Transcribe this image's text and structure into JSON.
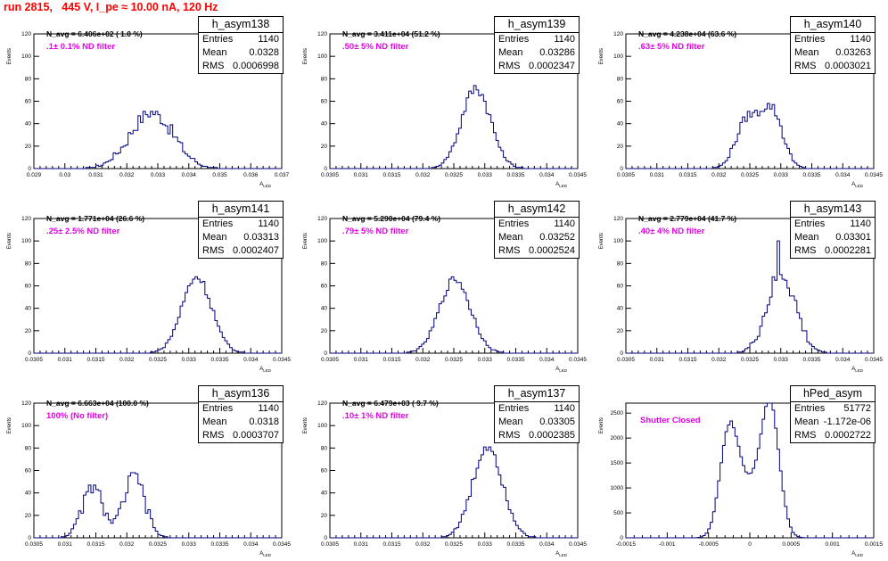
{
  "header": {
    "title": "run 2815,   445 V, I_pe ≈ 10.00 nA, 120 Hz"
  },
  "colors": {
    "title": "#ff0000",
    "filter_text": "#e600e6",
    "histogram": "#000080"
  },
  "common": {
    "ylabel": "Events",
    "xlabel": "A",
    "xlabel_sub": "LED"
  },
  "chart_data": [
    {
      "type": "bar",
      "title": "h_asym138",
      "navg": "N_avg = 6.406e+02 ( 1.0 %)",
      "filter": ".1± 0.1% ND filter",
      "stats": {
        "entries": "1140",
        "mean": "0.0328",
        "rms": "0.0006998"
      },
      "xlim": [
        0.029,
        0.037
      ],
      "ylim": [
        0,
        120
      ],
      "xticks": [
        "0.029",
        "0.03",
        "0.031",
        "0.032",
        "0.033",
        "0.034",
        "0.035",
        "0.036",
        "0.037"
      ],
      "yticks": [
        "0",
        "20",
        "40",
        "60",
        "80",
        "100",
        "120"
      ],
      "profile": {
        "type": "gauss",
        "mean": 0.0328,
        "sigma": 0.0007,
        "peak": 50,
        "noise": 12
      }
    },
    {
      "type": "bar",
      "title": "h_asym139",
      "navg": "N_avg = 3.411e+04 (51.2 %)",
      "filter": ".50± 5% ND filter",
      "stats": {
        "entries": "1140",
        "mean": "0.03286",
        "rms": "0.0002347"
      },
      "xlim": [
        0.0305,
        0.0345
      ],
      "ylim": [
        0,
        120
      ],
      "xticks": [
        "0.0305",
        "0.031",
        "0.0315",
        "0.032",
        "0.0325",
        "0.033",
        "0.0335",
        "0.034",
        "0.0345"
      ],
      "yticks": [
        "0",
        "20",
        "40",
        "60",
        "80",
        "100",
        "120"
      ],
      "profile": {
        "type": "gauss",
        "mean": 0.03286,
        "sigma": 0.000235,
        "peak": 72,
        "noise": 10
      }
    },
    {
      "type": "bar",
      "title": "h_asym140",
      "navg": "N_avg = 4.238e+04 (63.6 %)",
      "filter": ".63± 5% ND filter",
      "stats": {
        "entries": "1140",
        "mean": "0.03263",
        "rms": "0.0003021"
      },
      "xlim": [
        0.0305,
        0.0345
      ],
      "ylim": [
        0,
        120
      ],
      "xticks": [
        "0.0305",
        "0.031",
        "0.0315",
        "0.032",
        "0.0325",
        "0.033",
        "0.0335",
        "0.034",
        "0.0345"
      ],
      "yticks": [
        "0",
        "20",
        "40",
        "60",
        "80",
        "100",
        "120"
      ],
      "profile": {
        "type": "dgauss",
        "m1": 0.03245,
        "m2": 0.03285,
        "sigma": 0.00018,
        "p1": 42,
        "p2": 52,
        "noise": 8
      }
    },
    {
      "type": "bar",
      "title": "h_asym141",
      "navg": "N_avg = 1.771e+04 (26.6 %)",
      "filter": ".25± 2.5% ND filter",
      "stats": {
        "entries": "1140",
        "mean": "0.03313",
        "rms": "0.0002407"
      },
      "xlim": [
        0.0305,
        0.0345
      ],
      "ylim": [
        0,
        120
      ],
      "xticks": [
        "0.0305",
        "0.031",
        "0.0315",
        "0.032",
        "0.0325",
        "0.033",
        "0.0335",
        "0.034",
        "0.0345"
      ],
      "yticks": [
        "0",
        "20",
        "40",
        "60",
        "80",
        "100",
        "120"
      ],
      "profile": {
        "type": "gauss",
        "mean": 0.03313,
        "sigma": 0.00024,
        "peak": 68,
        "noise": 8
      }
    },
    {
      "type": "bar",
      "title": "h_asym142",
      "navg": "N_avg = 5.290e+04 (79.4 %)",
      "filter": ".79± 5% ND filter",
      "stats": {
        "entries": "1140",
        "mean": "0.03252",
        "rms": "0.0002524"
      },
      "xlim": [
        0.0305,
        0.0345
      ],
      "ylim": [
        0,
        120
      ],
      "xticks": [
        "0.0305",
        "0.031",
        "0.0315",
        "0.032",
        "0.0325",
        "0.033",
        "0.0335",
        "0.034",
        "0.0345"
      ],
      "yticks": [
        "0",
        "20",
        "40",
        "60",
        "80",
        "100",
        "120"
      ],
      "profile": {
        "type": "gauss",
        "mean": 0.03252,
        "sigma": 0.00025,
        "peak": 66,
        "noise": 7
      }
    },
    {
      "type": "bar",
      "title": "h_asym143",
      "navg": "N_avg = 2.779e+04 (41.7 %)",
      "filter": ".40± 4% ND filter",
      "stats": {
        "entries": "1140",
        "mean": "0.03301",
        "rms": "0.0002281"
      },
      "xlim": [
        0.0305,
        0.0345
      ],
      "ylim": [
        0,
        120
      ],
      "xticks": [
        "0.0305",
        "0.031",
        "0.0315",
        "0.032",
        "0.0325",
        "0.033",
        "0.0335",
        "0.034",
        "0.0345"
      ],
      "yticks": [
        "0",
        "20",
        "40",
        "60",
        "80",
        "100",
        "120"
      ],
      "profile": {
        "type": "gauss",
        "mean": 0.03301,
        "sigma": 0.00023,
        "peak": 70,
        "noise": 18,
        "spike": [
          0.03297,
          100
        ]
      }
    },
    {
      "type": "bar",
      "title": "h_asym136",
      "navg": "N_avg = 6.663e+04 (100.0 %)",
      "filter": "100% (No filter)",
      "stats": {
        "entries": "1140",
        "mean": "0.0318",
        "rms": "0.0003707"
      },
      "xlim": [
        0.0305,
        0.0345
      ],
      "ylim": [
        0,
        120
      ],
      "xticks": [
        "0.0305",
        "0.031",
        "0.0315",
        "0.032",
        "0.0325",
        "0.033",
        "0.0335",
        "0.034",
        "0.0345"
      ],
      "yticks": [
        "0",
        "20",
        "40",
        "60",
        "80",
        "100",
        "120"
      ],
      "profile": {
        "type": "dgauss",
        "m1": 0.03145,
        "m2": 0.03212,
        "sigma": 0.00017,
        "p1": 45,
        "p2": 55,
        "noise": 12
      }
    },
    {
      "type": "bar",
      "title": "h_asym137",
      "navg": "N_avg = 6.479e+03 ( 9.7 %)",
      "filter": ".10± 1% ND filter",
      "stats": {
        "entries": "1140",
        "mean": "0.03305",
        "rms": "0.0002385"
      },
      "xlim": [
        0.0305,
        0.0345
      ],
      "ylim": [
        0,
        120
      ],
      "xticks": [
        "0.0305",
        "0.031",
        "0.0315",
        "0.032",
        "0.0325",
        "0.033",
        "0.0335",
        "0.034",
        "0.0345"
      ],
      "yticks": [
        "0",
        "20",
        "40",
        "60",
        "80",
        "100",
        "120"
      ],
      "profile": {
        "type": "gauss",
        "mean": 0.03305,
        "sigma": 0.00024,
        "peak": 82,
        "noise": 10
      }
    },
    {
      "type": "bar",
      "title": "hPed_asym",
      "navg": "",
      "filter": "Shutter Closed",
      "stats": {
        "entries": "51772",
        "mean": "-1.172e-06",
        "rms": "0.0002722"
      },
      "xlim": [
        -0.0015,
        0.0015
      ],
      "ylim": [
        0,
        2700
      ],
      "xticks": [
        "-0.0015",
        "-0.001",
        "-0.0005",
        "0",
        "0.0005",
        "0.001",
        "0.0015"
      ],
      "yticks": [
        "0",
        "500",
        "1000",
        "1500",
        "2000",
        "2500"
      ],
      "profile": {
        "type": "dgauss",
        "m1": -0.00025,
        "m2": 0.00025,
        "sigma": 0.00011,
        "p1": 2050,
        "p2": 2500,
        "noise": 60,
        "floor": 950
      }
    }
  ]
}
